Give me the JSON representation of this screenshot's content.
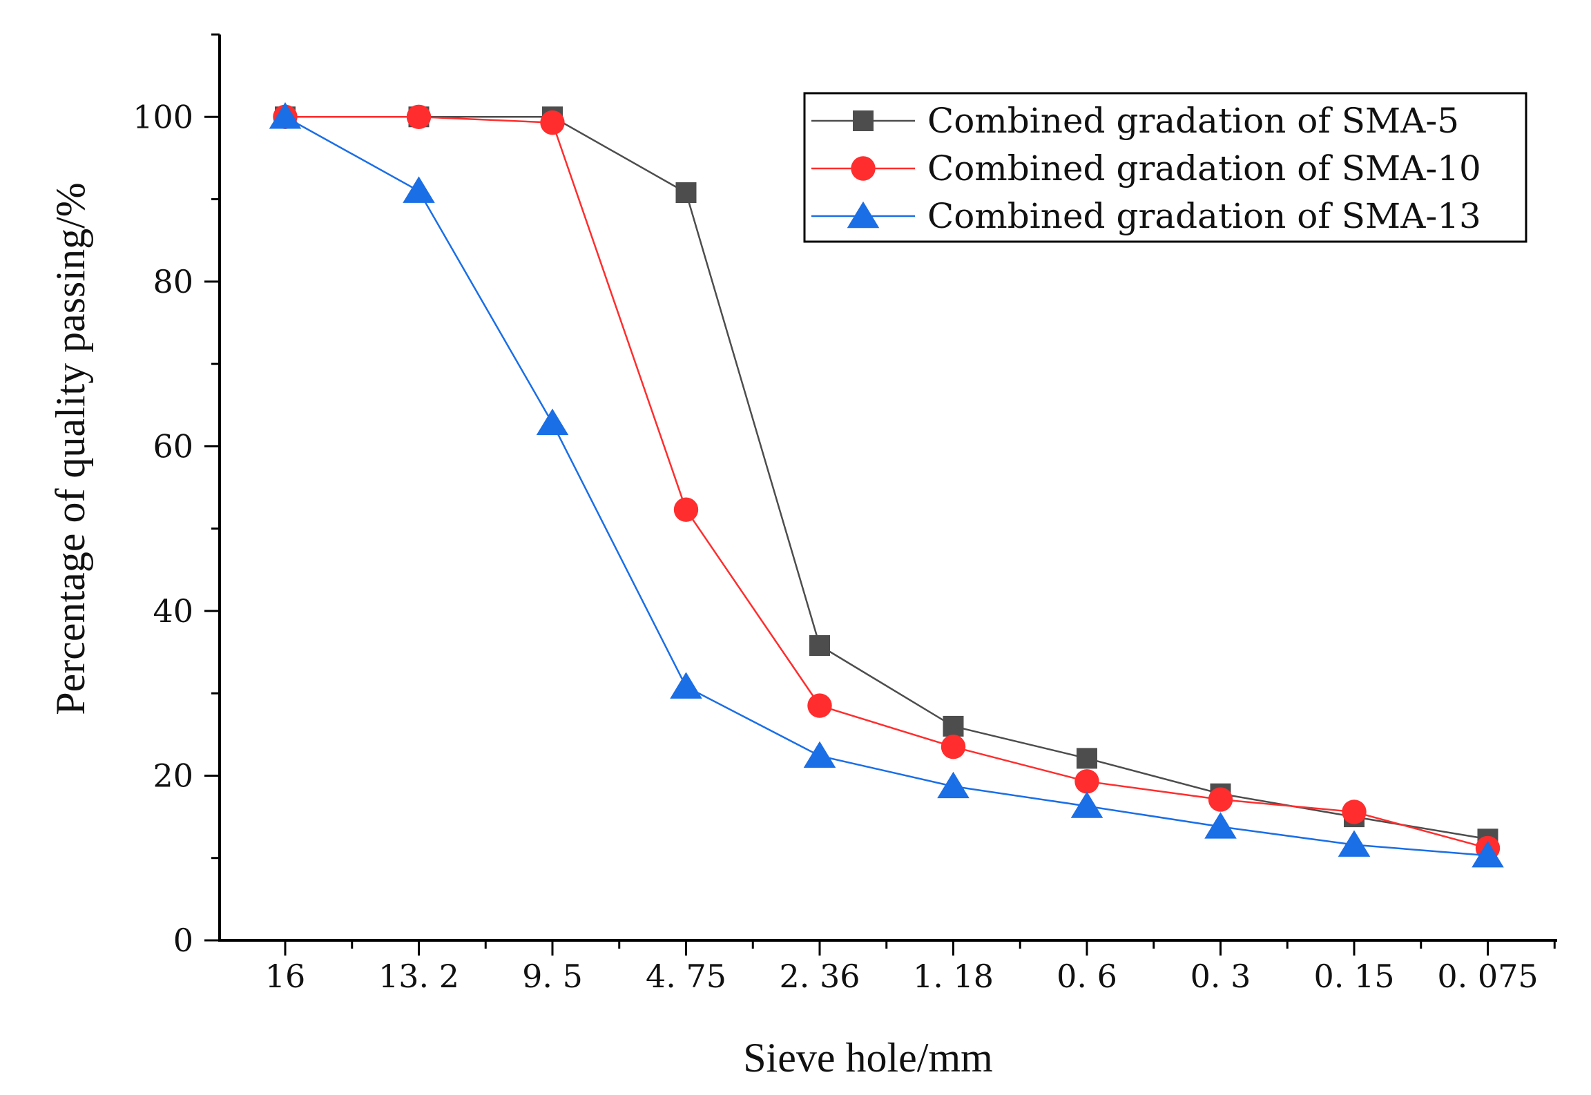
{
  "chart_data": {
    "type": "line",
    "xlabel": "Sieve hole/mm",
    "ylabel": "Percentage of quality passing/%",
    "categories": [
      "16",
      "13. 2",
      "9. 5",
      "4. 75",
      "2. 36",
      "1. 18",
      "0. 6",
      "0. 3",
      "0. 15",
      "0. 075"
    ],
    "yticks": [
      "0",
      "20",
      "40",
      "60",
      "80",
      "100"
    ],
    "ylim": [
      0,
      110
    ],
    "grid": false,
    "legend_position": "top-right",
    "series": [
      {
        "name": "Combined gradation of SMA-5",
        "color": "#4d4d4d",
        "marker": "square",
        "values": [
          100,
          100,
          100,
          90.8,
          35.8,
          26.0,
          22.1,
          17.8,
          15.0,
          12.3
        ]
      },
      {
        "name": "Combined gradation of SMA-10",
        "color": "#ff2d2d",
        "marker": "circle",
        "values": [
          100,
          100,
          99.3,
          52.3,
          28.5,
          23.5,
          19.3,
          17.1,
          15.6,
          11.2
        ]
      },
      {
        "name": "Combined gradation of SMA-13",
        "color": "#1a6ee6",
        "marker": "triangle",
        "values": [
          100,
          91.0,
          62.8,
          30.8,
          22.4,
          18.7,
          16.3,
          13.8,
          11.6,
          10.3
        ]
      }
    ]
  }
}
